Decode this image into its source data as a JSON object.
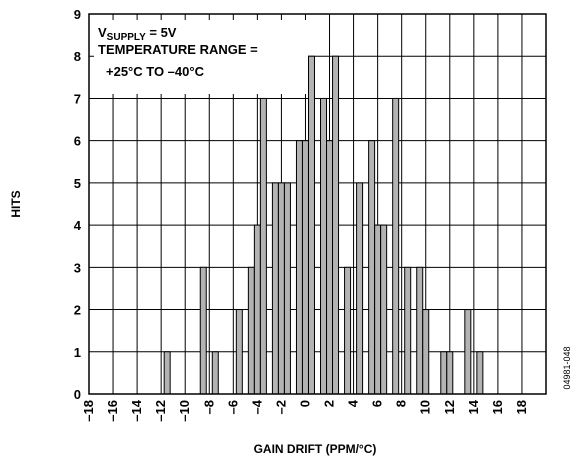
{
  "chart_data": {
    "type": "bar",
    "xlabel": "GAIN DRIFT (PPM/°C)",
    "ylabel": "HITS",
    "xlim": [
      -18,
      20
    ],
    "ylim": [
      0,
      9
    ],
    "x_ticks": [
      -18,
      -16,
      -14,
      -12,
      -10,
      -8,
      -6,
      -4,
      -2,
      0,
      2,
      4,
      6,
      8,
      10,
      12,
      14,
      16,
      18
    ],
    "x_tick_labels": [
      "–18",
      "–16",
      "–14",
      "–12",
      "–10",
      "–8",
      "–6",
      "–4",
      "–2",
      "0",
      "2",
      "4",
      "6",
      "8",
      "10",
      "12",
      "14",
      "16",
      "18"
    ],
    "y_ticks": [
      0,
      1,
      2,
      3,
      4,
      5,
      6,
      7,
      8,
      9
    ],
    "y_tick_labels": [
      "0",
      "1",
      "2",
      "3",
      "4",
      "5",
      "6",
      "7",
      "8",
      "9"
    ],
    "grid": true,
    "bar_color": "#b3b3b3",
    "bars": [
      {
        "x": -11.5,
        "y": 1
      },
      {
        "x": -8.5,
        "y": 3
      },
      {
        "x": -7.5,
        "y": 1
      },
      {
        "x": -5.5,
        "y": 2
      },
      {
        "x": -4.5,
        "y": 3
      },
      {
        "x": -4.0,
        "y": 4
      },
      {
        "x": -3.5,
        "y": 7
      },
      {
        "x": -2.5,
        "y": 5
      },
      {
        "x": -2.0,
        "y": 5
      },
      {
        "x": -1.5,
        "y": 5
      },
      {
        "x": -0.5,
        "y": 6
      },
      {
        "x": 0.0,
        "y": 6
      },
      {
        "x": 0.5,
        "y": 8
      },
      {
        "x": 1.5,
        "y": 7
      },
      {
        "x": 2.0,
        "y": 6
      },
      {
        "x": 2.5,
        "y": 8
      },
      {
        "x": 3.5,
        "y": 3
      },
      {
        "x": 4.5,
        "y": 5
      },
      {
        "x": 5.5,
        "y": 6
      },
      {
        "x": 6.0,
        "y": 4
      },
      {
        "x": 6.5,
        "y": 4
      },
      {
        "x": 7.5,
        "y": 7
      },
      {
        "x": 8.5,
        "y": 3
      },
      {
        "x": 9.5,
        "y": 3
      },
      {
        "x": 10.0,
        "y": 2
      },
      {
        "x": 11.5,
        "y": 1
      },
      {
        "x": 12.0,
        "y": 1
      },
      {
        "x": 13.5,
        "y": 2
      },
      {
        "x": 14.5,
        "y": 1
      }
    ],
    "annotations": {
      "supply_prefix": "V",
      "supply_sub": "SUPPLY",
      "supply_value": " = 5V",
      "temp_line1": "TEMPERATURE RANGE =",
      "temp_line2": "+25°C TO –40°C"
    },
    "figure_id": "04981-048"
  }
}
